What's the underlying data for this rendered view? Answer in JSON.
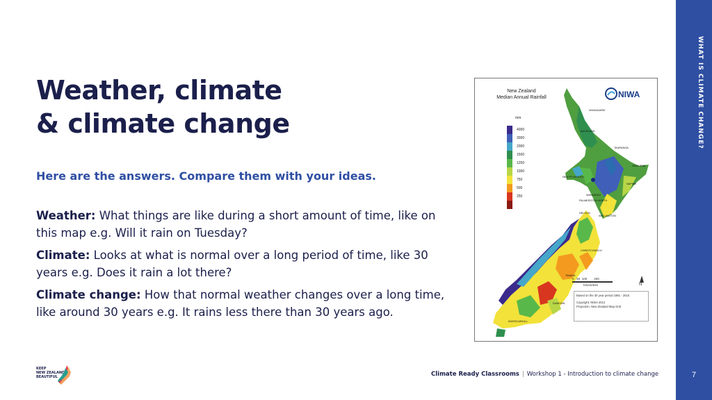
{
  "title_lines": [
    "Weather, climate",
    "& climate change"
  ],
  "subtitle": "Here are the answers. Compare them with your ideas.",
  "definitions": [
    {
      "term": "Weather:",
      "text": " What things are like during a short amount of time, like on this map e.g. Will it rain on Tuesday?"
    },
    {
      "term": "Climate:",
      "text": " Looks at what is normal over a long period of time, like 30 years e.g. Does it rain a lot there?"
    },
    {
      "term": "Climate change:",
      "text": " How that normal weather changes over a long time, like around 30 years e.g. It rains less there than 30 years ago."
    }
  ],
  "sidebar_label": "WHAT IS CLIMATE CHANGE?",
  "page_number": "7",
  "footer": {
    "brand": "Climate Ready Classrooms",
    "separator": "|",
    "workshop": "Workshop 1 - Introduction to climate change"
  },
  "logo_text": "KEEP\nNEW ZEALAND\nBEAUTIFUL",
  "map": {
    "title": "New Zealand\nMedian Annual Rainfall",
    "brand": "NIWA",
    "legend_unit": "mm",
    "legend": [
      {
        "label": "4000",
        "color": "#3a2a8c"
      },
      {
        "label": "3000",
        "color": "#3f5fb8"
      },
      {
        "label": "2000",
        "color": "#45a7c9"
      },
      {
        "label": "1500",
        "color": "#2f8f4e"
      },
      {
        "label": "1250",
        "color": "#58b84a"
      },
      {
        "label": "1000",
        "color": "#b8d646"
      },
      {
        "label": "750",
        "color": "#f2e23a"
      },
      {
        "label": "500",
        "color": "#f39a1f"
      },
      {
        "label": "250",
        "color": "#d8361f"
      },
      {
        "label": "",
        "color": "#8a1a12"
      }
    ],
    "scale_labels": "0   50  100        200",
    "scale_unit": "Kilometres",
    "north": "N",
    "note_line1": "Based on the 30 year period 1981 - 2010.",
    "note_line2": "Copyright: NIWA 2012",
    "note_line3": "Projection: New Zealand Map Grid",
    "towns": [
      "WHANGAREI",
      "AUCKLAND",
      "TAURANGA",
      "NEW PLYMOUTH",
      "NAPIER",
      "WANGANUI",
      "PALMERSTON NORTH",
      "WELLINGTON",
      "NELSON",
      "CHRISTCHURCH",
      "TIMARU",
      "DUNEDIN",
      "INVERCARGILL",
      "GISBORNE"
    ]
  }
}
